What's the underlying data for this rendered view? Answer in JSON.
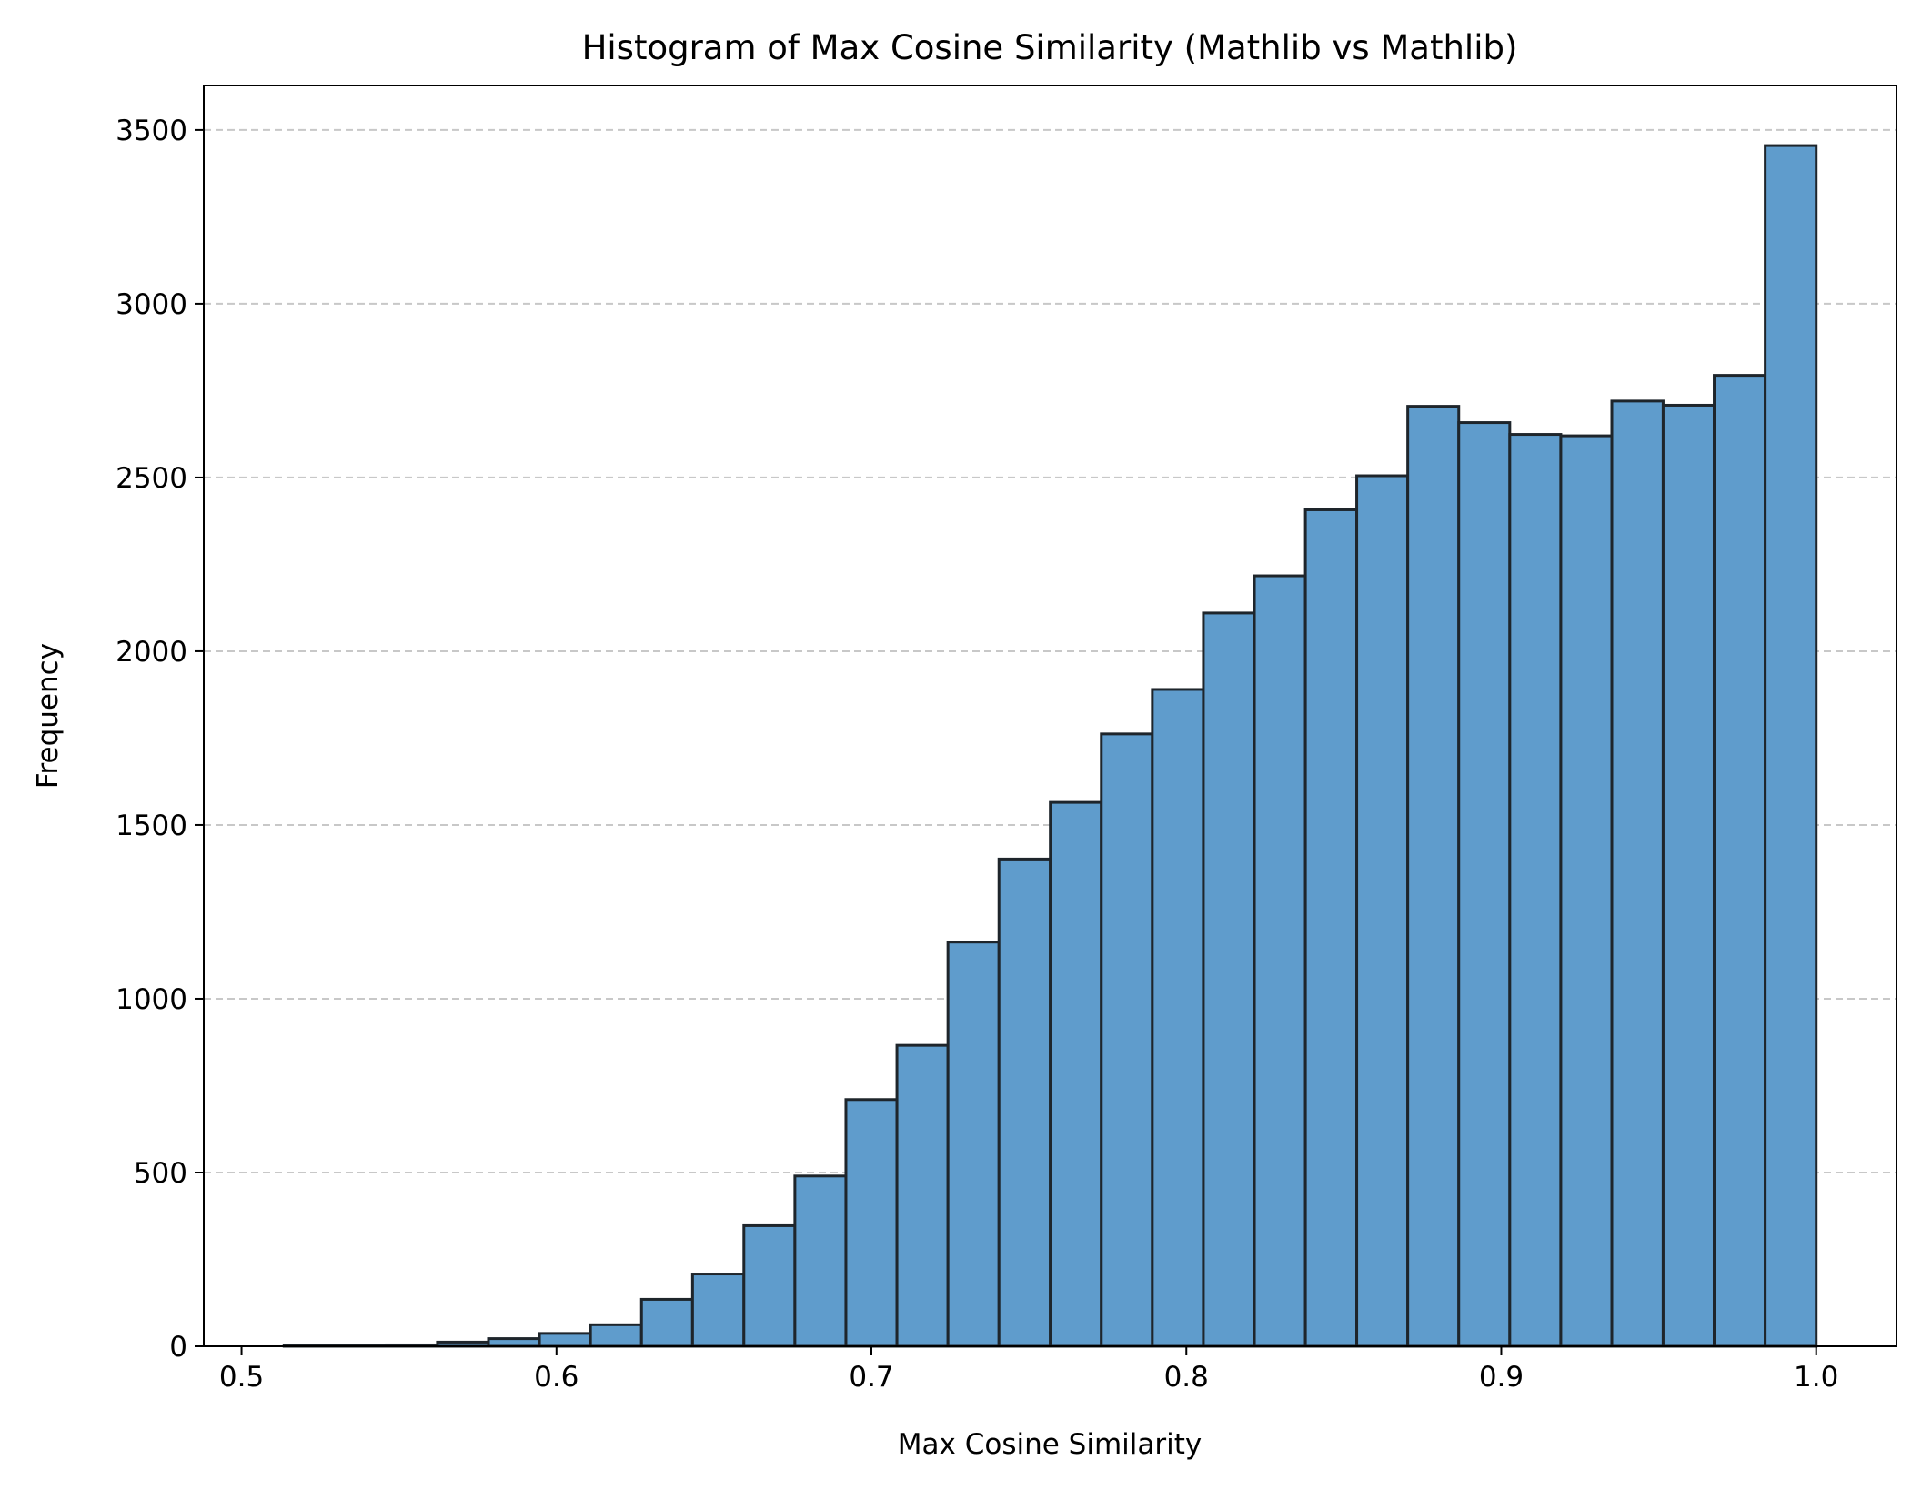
{
  "chart_data": {
    "type": "bar",
    "title": "Histogram of Max Cosine Similarity (Mathlib vs Mathlib)",
    "xlabel": "Max Cosine Similarity",
    "ylabel": "Frequency",
    "xlim": [
      0.488,
      1.0255
    ],
    "ylim": [
      0,
      3628
    ],
    "xticks": [
      0.5,
      0.6,
      0.7,
      0.8,
      0.9,
      1.0
    ],
    "xtick_labels": [
      "0.5",
      "0.6",
      "0.7",
      "0.8",
      "0.9",
      "1.0"
    ],
    "yticks": [
      0,
      500,
      1000,
      1500,
      2000,
      2500,
      3000,
      3500
    ],
    "ytick_labels": [
      "0",
      "500",
      "1000",
      "1500",
      "2000",
      "2500",
      "3000",
      "3500"
    ],
    "grid": "y-dashed",
    "bar_color": "#5f9ccc",
    "edge_color": "#1e252b",
    "bins": [
      {
        "start": 0.5135,
        "end": 0.5297,
        "value": 2
      },
      {
        "start": 0.5297,
        "end": 0.546,
        "value": 2
      },
      {
        "start": 0.546,
        "end": 0.5622,
        "value": 4
      },
      {
        "start": 0.5622,
        "end": 0.5784,
        "value": 12
      },
      {
        "start": 0.5784,
        "end": 0.5946,
        "value": 22
      },
      {
        "start": 0.5946,
        "end": 0.6108,
        "value": 37
      },
      {
        "start": 0.6108,
        "end": 0.627,
        "value": 62
      },
      {
        "start": 0.627,
        "end": 0.6432,
        "value": 135
      },
      {
        "start": 0.6432,
        "end": 0.6595,
        "value": 208
      },
      {
        "start": 0.6595,
        "end": 0.6757,
        "value": 347
      },
      {
        "start": 0.6757,
        "end": 0.6919,
        "value": 490
      },
      {
        "start": 0.6919,
        "end": 0.7081,
        "value": 710
      },
      {
        "start": 0.7081,
        "end": 0.7243,
        "value": 866
      },
      {
        "start": 0.7243,
        "end": 0.7405,
        "value": 1163
      },
      {
        "start": 0.7405,
        "end": 0.7568,
        "value": 1402
      },
      {
        "start": 0.7568,
        "end": 0.773,
        "value": 1565
      },
      {
        "start": 0.773,
        "end": 0.7892,
        "value": 1762
      },
      {
        "start": 0.7892,
        "end": 0.8054,
        "value": 1890
      },
      {
        "start": 0.8054,
        "end": 0.8216,
        "value": 2110
      },
      {
        "start": 0.8216,
        "end": 0.8378,
        "value": 2217
      },
      {
        "start": 0.8378,
        "end": 0.8541,
        "value": 2407
      },
      {
        "start": 0.8541,
        "end": 0.8703,
        "value": 2505
      },
      {
        "start": 0.8703,
        "end": 0.8865,
        "value": 2705
      },
      {
        "start": 0.8865,
        "end": 0.9027,
        "value": 2658
      },
      {
        "start": 0.9027,
        "end": 0.9189,
        "value": 2624
      },
      {
        "start": 0.9189,
        "end": 0.9351,
        "value": 2620
      },
      {
        "start": 0.9351,
        "end": 0.9514,
        "value": 2720
      },
      {
        "start": 0.9514,
        "end": 0.9676,
        "value": 2708
      },
      {
        "start": 0.9676,
        "end": 0.9838,
        "value": 2794
      },
      {
        "start": 0.9838,
        "end": 1.0,
        "value": 3455
      }
    ]
  }
}
